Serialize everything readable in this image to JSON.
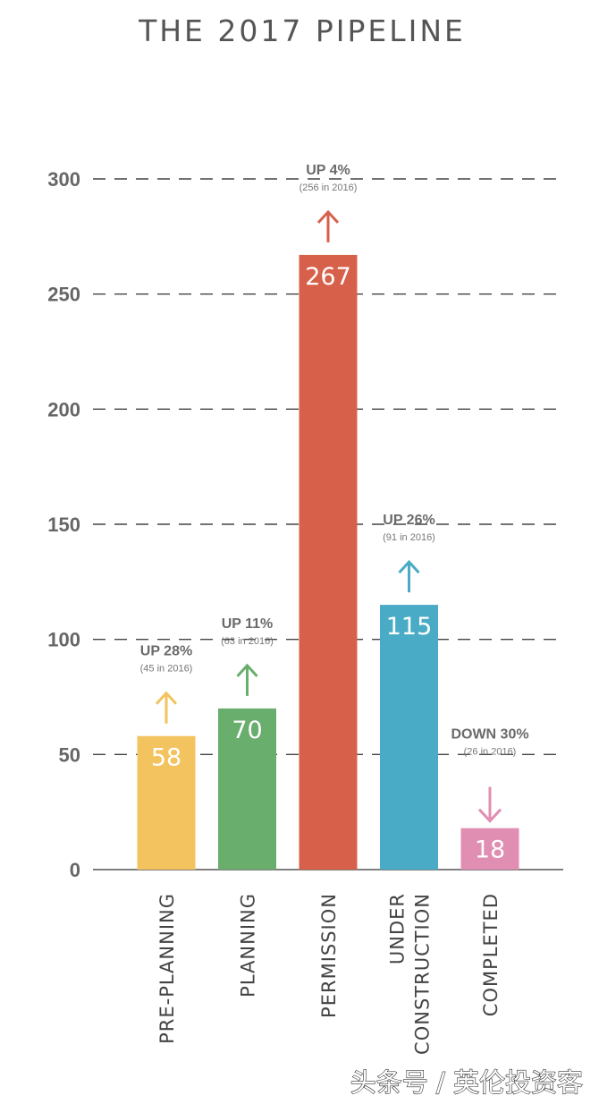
{
  "title": "THE 2017 PIPELINE",
  "watermark": "头条号 / 英伦投资客",
  "chart_data": {
    "type": "bar",
    "title": "THE 2017 PIPELINE",
    "xlabel": "",
    "ylabel": "",
    "ylim": [
      0,
      300
    ],
    "yticks": [
      0,
      50,
      100,
      150,
      200,
      250,
      300
    ],
    "grid": "dashed-horizontal",
    "categories": [
      [
        "PRE-PLANNING"
      ],
      [
        "PLANNING"
      ],
      [
        "PERMISSION"
      ],
      [
        "UNDER",
        "CONSTRUCTION"
      ],
      [
        "COMPLETED"
      ]
    ],
    "values": [
      58,
      70,
      267,
      115,
      18
    ],
    "colors": [
      "#f2c35f",
      "#6aae6e",
      "#d7604a",
      "#4aabc6",
      "#e08fb2"
    ],
    "annotations": [
      {
        "direction": "up",
        "label": "UP 28%",
        "previous": "(45 in 2016)"
      },
      {
        "direction": "up",
        "label": "UP 11%",
        "previous": "(63 in 2016)"
      },
      {
        "direction": "up",
        "label": "UP 4%",
        "previous": "(256 in 2016)"
      },
      {
        "direction": "up",
        "label": "UP 26%",
        "previous": "(91 in 2016)"
      },
      {
        "direction": "down",
        "label": "DOWN 30%",
        "previous": "(26 in 2016)"
      }
    ]
  }
}
